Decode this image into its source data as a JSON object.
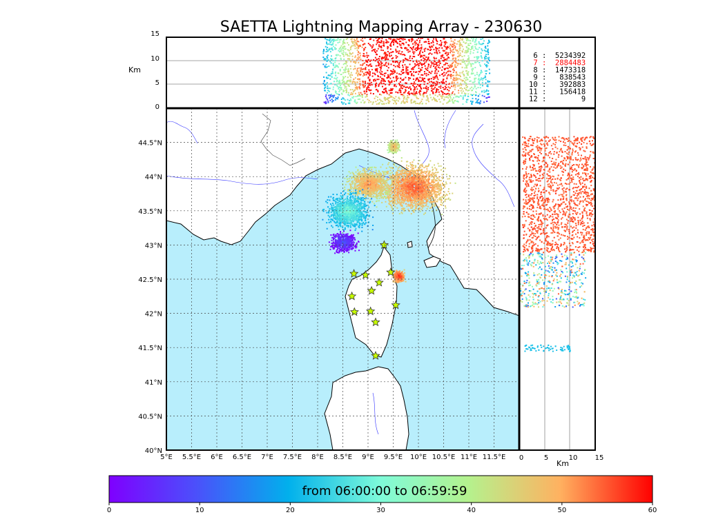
{
  "colors": {
    "sea": "#b8eefc",
    "land": "#ffffff",
    "coast": "#000000",
    "rivers": "#3232ff",
    "borders": "#555555",
    "star": "#c8ff00",
    "legend_highlight": "#ff0000"
  },
  "chart_data": {
    "type": "scatter",
    "title": "SAETTA Lightning Mapping Array - 230630",
    "time_range_label": "from 06:00:00 to 06:59:59",
    "map": {
      "lon_range": [
        5.0,
        12.0
      ],
      "lat_range": [
        40.0,
        45.0
      ],
      "lon_ticks": [
        "5°E",
        "5.5°E",
        "6°E",
        "6.5°E",
        "7°E",
        "7.5°E",
        "8°E",
        "8.5°E",
        "9°E",
        "9.5°E",
        "10°E",
        "10.5°E",
        "11°E",
        "11.5°E"
      ],
      "lat_ticks": [
        "40°N",
        "40.5°N",
        "41°N",
        "41.5°N",
        "42°N",
        "42.5°N",
        "43°N",
        "43.5°N",
        "44°N",
        "44.5°N"
      ],
      "grid": true
    },
    "altitude_panel": {
      "ylabel": "Km",
      "yticks": [
        "0",
        "5",
        "10",
        "15"
      ],
      "ylim": [
        0,
        15
      ]
    },
    "altitude_side_panel": {
      "xlabel": "Km",
      "xticks": [
        "0",
        "5",
        "10",
        "15"
      ],
      "xlim": [
        0,
        15
      ]
    },
    "colorbar": {
      "ticks": [
        "0",
        "10",
        "20",
        "30",
        "40",
        "50",
        "60"
      ],
      "range": [
        0,
        60
      ],
      "unit_minutes": true
    },
    "legend": [
      {
        "stations": "6",
        "count": "5234392",
        "highlight": false
      },
      {
        "stations": "7",
        "count": "2884483",
        "highlight": true
      },
      {
        "stations": "8",
        "count": "1473318",
        "highlight": false
      },
      {
        "stations": "9",
        "count": "838543",
        "highlight": false
      },
      {
        "stations": "10",
        "count": "392883",
        "highlight": false
      },
      {
        "stations": "11",
        "count": "156418",
        "highlight": false
      },
      {
        "stations": "12",
        "count": "9",
        "highlight": false
      }
    ],
    "stations_lonlat": [
      [
        8.72,
        42.58
      ],
      [
        8.95,
        42.56
      ],
      [
        9.45,
        42.6
      ],
      [
        9.22,
        42.45
      ],
      [
        9.07,
        42.33
      ],
      [
        8.68,
        42.25
      ],
      [
        8.73,
        42.02
      ],
      [
        9.05,
        42.03
      ],
      [
        9.15,
        41.87
      ],
      [
        9.55,
        42.12
      ],
      [
        9.32,
        43.0
      ],
      [
        9.15,
        41.38
      ]
    ],
    "lightning_clusters": [
      {
        "lon": 9.9,
        "lat": 43.85,
        "rx": 0.85,
        "ry": 0.45,
        "time_min": 55
      },
      {
        "lon": 9.0,
        "lat": 43.9,
        "rx": 0.55,
        "ry": 0.3,
        "time_min": 52
      },
      {
        "lon": 9.5,
        "lat": 44.45,
        "rx": 0.15,
        "ry": 0.12,
        "time_min": 50
      },
      {
        "lon": 8.6,
        "lat": 43.5,
        "rx": 0.55,
        "ry": 0.35,
        "time_min": 30
      },
      {
        "lon": 8.5,
        "lat": 43.05,
        "rx": 0.35,
        "ry": 0.2,
        "time_min": 10
      },
      {
        "lon": 9.6,
        "lat": 42.55,
        "rx": 0.15,
        "ry": 0.12,
        "time_min": 58
      }
    ]
  }
}
